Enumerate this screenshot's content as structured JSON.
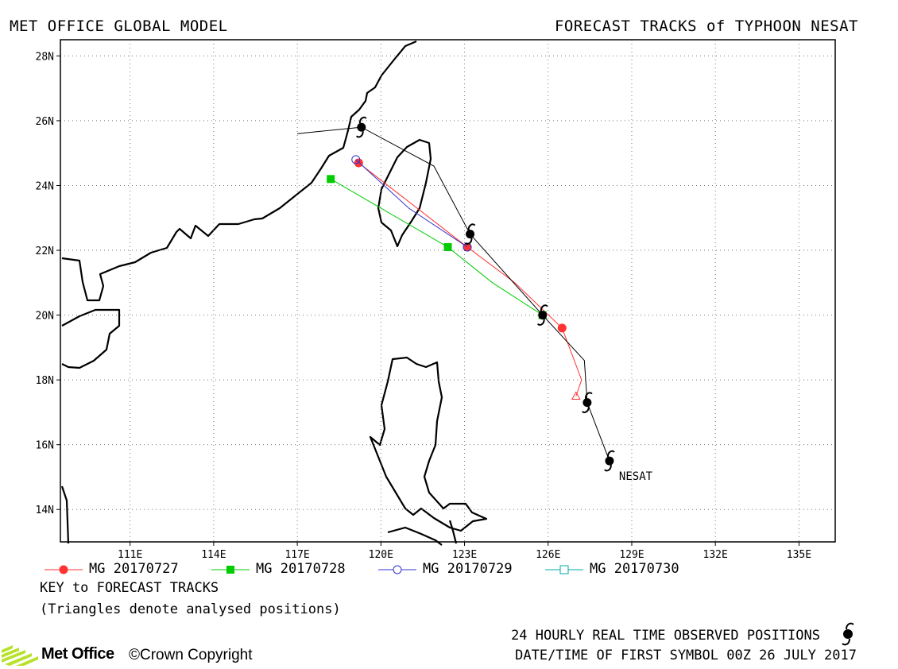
{
  "header": {
    "left_title": "MET OFFICE GLOBAL MODEL",
    "right_title": "FORECAST TRACKS of TYPHOON NESAT"
  },
  "map": {
    "lon_range": [
      108.5,
      136.3
    ],
    "lat_range": [
      13,
      28.5
    ],
    "grid": true,
    "lon_ticks": [
      "111E",
      "114E",
      "117E",
      "120E",
      "123E",
      "126E",
      "129E",
      "132E",
      "135E"
    ],
    "lat_ticks": [
      "28N",
      "26N",
      "24N",
      "22N",
      "20N",
      "18N",
      "16N",
      "14N"
    ],
    "storm_label": "NESAT"
  },
  "tracks": [
    {
      "name": "MG 20170727",
      "color": "#ff3333",
      "marker": "filled-circle",
      "points": [
        [
          127.0,
          17.5
        ],
        [
          127.2,
          18.0
        ],
        [
          126.5,
          19.6
        ],
        [
          124.8,
          21.0
        ],
        [
          123.1,
          22.1
        ],
        [
          119.2,
          24.7
        ]
      ]
    },
    {
      "name": "MG 20170728",
      "color": "#00cc00",
      "marker": "filled-square",
      "points": [
        [
          125.8,
          20.0
        ],
        [
          124.0,
          21.0
        ],
        [
          122.4,
          22.1
        ],
        [
          118.2,
          24.2
        ]
      ]
    },
    {
      "name": "MG 20170729",
      "color": "#3333cc",
      "marker": "open-circle",
      "points": [
        [
          123.1,
          22.1
        ],
        [
          121.0,
          23.3
        ],
        [
          119.1,
          24.8
        ]
      ]
    },
    {
      "name": "MG 20170730",
      "color": "#00aaaa",
      "marker": "open-square",
      "points": []
    }
  ],
  "observed_track": {
    "color": "#000000",
    "points": [
      [
        128.2,
        15.5
      ],
      [
        127.4,
        17.3
      ],
      [
        127.3,
        18.6
      ],
      [
        125.8,
        20.0
      ],
      [
        123.2,
        22.5
      ],
      [
        121.9,
        24.6
      ],
      [
        119.3,
        25.8
      ],
      [
        117.0,
        25.6
      ]
    ],
    "symbols": [
      [
        128.2,
        15.5
      ],
      [
        127.4,
        17.3
      ],
      [
        125.8,
        20.0
      ],
      [
        123.2,
        22.5
      ],
      [
        119.3,
        25.8
      ]
    ]
  },
  "legend": {
    "key_title": "KEY to FORECAST TRACKS",
    "triangles_note": "(Triangles denote analysed positions)"
  },
  "footer": {
    "observed_note": "24 HOURLY REAL TIME OBSERVED POSITIONS",
    "first_symbol_note": "DATE/TIME OF FIRST SYMBOL 00Z 26 JULY 2017",
    "logo_text": "Met Office",
    "copyright": "©Crown Copyright"
  }
}
